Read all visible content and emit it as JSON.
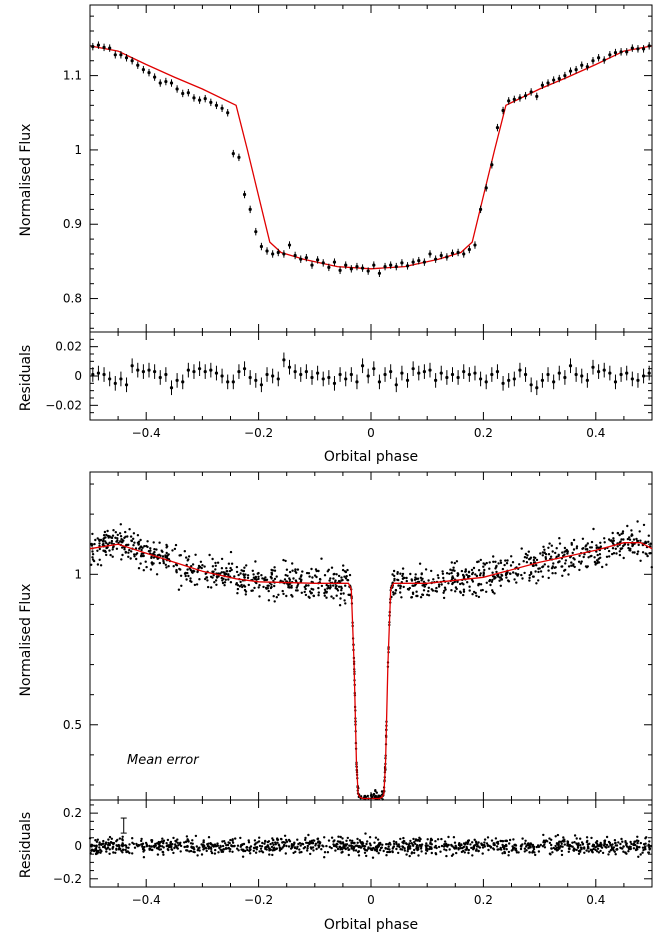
{
  "chart_data": [
    {
      "type": "scatter",
      "title": "",
      "xlabel": "Orbital phase",
      "ylabel": "Normalised Flux",
      "xlim": [
        -0.5,
        0.5
      ],
      "ylim": [
        0.755,
        1.195
      ],
      "xticks": [
        -0.4,
        -0.2,
        0,
        0.2,
        0.4
      ],
      "xtick_labels": [
        "−0.4",
        "−0.2",
        "0",
        "0.2",
        "0.4"
      ],
      "yticks": [
        0.8,
        0.9,
        1.0,
        1.1
      ],
      "ytick_labels": [
        "0.8",
        "0.9",
        "1",
        "1.1"
      ],
      "grid": false,
      "series": [
        {
          "kind": "data-with-errorbars",
          "x": [
            -0.495,
            -0.485,
            -0.475,
            -0.465,
            -0.455,
            -0.445,
            -0.435,
            -0.425,
            -0.415,
            -0.405,
            -0.395,
            -0.385,
            -0.375,
            -0.365,
            -0.355,
            -0.345,
            -0.335,
            -0.325,
            -0.315,
            -0.305,
            -0.295,
            -0.285,
            -0.275,
            -0.265,
            -0.255,
            -0.245,
            -0.235,
            -0.225,
            -0.215,
            -0.205,
            -0.195,
            -0.185,
            -0.175,
            -0.165,
            -0.155,
            -0.145,
            -0.135,
            -0.125,
            -0.115,
            -0.105,
            -0.095,
            -0.085,
            -0.075,
            -0.065,
            -0.055,
            -0.045,
            -0.035,
            -0.025,
            -0.015,
            -0.005,
            0.005,
            0.015,
            0.025,
            0.035,
            0.045,
            0.055,
            0.065,
            0.075,
            0.085,
            0.095,
            0.105,
            0.115,
            0.125,
            0.135,
            0.145,
            0.155,
            0.165,
            0.175,
            0.185,
            0.195,
            0.205,
            0.215,
            0.225,
            0.235,
            0.245,
            0.255,
            0.265,
            0.275,
            0.285,
            0.295,
            0.305,
            0.315,
            0.325,
            0.335,
            0.345,
            0.355,
            0.365,
            0.375,
            0.385,
            0.395,
            0.405,
            0.415,
            0.425,
            0.435,
            0.445,
            0.455,
            0.465,
            0.475,
            0.485,
            0.495
          ],
          "y": [
            1.139,
            1.141,
            1.138,
            1.137,
            1.128,
            1.128,
            1.124,
            1.12,
            1.114,
            1.108,
            1.104,
            1.098,
            1.09,
            1.092,
            1.09,
            1.082,
            1.076,
            1.077,
            1.07,
            1.067,
            1.069,
            1.064,
            1.06,
            1.056,
            1.05,
            0.995,
            0.99,
            0.94,
            0.92,
            0.89,
            0.87,
            0.864,
            0.86,
            0.862,
            0.86,
            0.872,
            0.858,
            0.853,
            0.855,
            0.845,
            0.852,
            0.848,
            0.842,
            0.849,
            0.838,
            0.845,
            0.84,
            0.843,
            0.841,
            0.837,
            0.845,
            0.834,
            0.843,
            0.845,
            0.843,
            0.848,
            0.844,
            0.849,
            0.851,
            0.849,
            0.86,
            0.853,
            0.858,
            0.856,
            0.861,
            0.862,
            0.86,
            0.866,
            0.872,
            0.92,
            0.949,
            0.98,
            1.03,
            1.053,
            1.066,
            1.068,
            1.07,
            1.073,
            1.078,
            1.072,
            1.087,
            1.09,
            1.094,
            1.096,
            1.1,
            1.106,
            1.108,
            1.114,
            1.112,
            1.12,
            1.124,
            1.121,
            1.128,
            1.131,
            1.132,
            1.132,
            1.137,
            1.136,
            1.136,
            1.14
          ],
          "yerr": 0.005
        },
        {
          "kind": "model",
          "x": [
            -0.5,
            -0.45,
            -0.4,
            -0.35,
            -0.3,
            -0.24,
            -0.22,
            -0.18,
            -0.16,
            -0.12,
            -0.06,
            0.0,
            0.06,
            0.12,
            0.16,
            0.18,
            0.22,
            0.24,
            0.3,
            0.35,
            0.4,
            0.45,
            0.5
          ],
          "y": [
            1.14,
            1.133,
            1.115,
            1.098,
            1.082,
            1.06,
            1.0,
            0.876,
            0.862,
            0.853,
            0.843,
            0.84,
            0.843,
            0.853,
            0.862,
            0.876,
            1.0,
            1.06,
            1.082,
            1.098,
            1.115,
            1.133,
            1.14
          ]
        }
      ]
    },
    {
      "type": "scatter",
      "title": "",
      "xlabel": "",
      "ylabel": "Residuals",
      "xlim": [
        -0.5,
        0.5
      ],
      "ylim": [
        -0.03,
        0.03
      ],
      "yticks": [
        -0.02,
        0,
        0.02
      ],
      "ytick_labels": [
        "−0.02",
        "0",
        "0.02"
      ],
      "yerr": 0.005,
      "series": [
        {
          "kind": "residuals-with-errorbars",
          "x": [
            -0.495,
            -0.485,
            -0.475,
            -0.465,
            -0.455,
            -0.445,
            -0.435,
            -0.425,
            -0.415,
            -0.405,
            -0.395,
            -0.385,
            -0.375,
            -0.365,
            -0.355,
            -0.345,
            -0.335,
            -0.325,
            -0.315,
            -0.305,
            -0.295,
            -0.285,
            -0.275,
            -0.265,
            -0.255,
            -0.245,
            -0.235,
            -0.225,
            -0.215,
            -0.205,
            -0.195,
            -0.185,
            -0.175,
            -0.165,
            -0.155,
            -0.145,
            -0.135,
            -0.125,
            -0.115,
            -0.105,
            -0.095,
            -0.085,
            -0.075,
            -0.065,
            -0.055,
            -0.045,
            -0.035,
            -0.025,
            -0.015,
            -0.005,
            0.005,
            0.015,
            0.025,
            0.035,
            0.045,
            0.055,
            0.065,
            0.075,
            0.085,
            0.095,
            0.105,
            0.115,
            0.125,
            0.135,
            0.145,
            0.155,
            0.165,
            0.175,
            0.185,
            0.195,
            0.205,
            0.215,
            0.225,
            0.235,
            0.245,
            0.255,
            0.265,
            0.275,
            0.285,
            0.295,
            0.305,
            0.315,
            0.325,
            0.335,
            0.345,
            0.355,
            0.365,
            0.375,
            0.385,
            0.395,
            0.405,
            0.415,
            0.425,
            0.435,
            0.445,
            0.455,
            0.465,
            0.475,
            0.485,
            0.495
          ],
          "y": [
            0.001,
            0.002,
            0.001,
            -0.002,
            -0.005,
            -0.002,
            -0.006,
            0.007,
            0.004,
            0.003,
            0.004,
            0.003,
            -0.001,
            0.001,
            -0.008,
            -0.003,
            -0.004,
            0.004,
            0.003,
            0.005,
            0.003,
            0.004,
            0.002,
            0.0,
            -0.004,
            -0.004,
            0.003,
            0.005,
            -0.001,
            -0.003,
            -0.006,
            0.001,
            0.0,
            -0.002,
            0.011,
            0.006,
            0.003,
            0.001,
            0.003,
            -0.001,
            0.002,
            -0.002,
            -0.001,
            -0.005,
            0.001,
            -0.002,
            0.001,
            -0.004,
            0.007,
            0.0,
            0.005,
            -0.004,
            0.001,
            0.003,
            -0.006,
            0.002,
            -0.003,
            0.005,
            0.002,
            0.003,
            0.004,
            -0.003,
            0.002,
            -0.001,
            0.001,
            -0.001,
            0.003,
            0.001,
            0.002,
            -0.002,
            -0.004,
            0.001,
            0.003,
            -0.005,
            -0.003,
            -0.002,
            0.004,
            0.001,
            -0.006,
            -0.008,
            -0.003,
            0.001,
            -0.004,
            0.002,
            -0.001,
            0.007,
            0.001,
            0.0,
            -0.003,
            0.006,
            0.003,
            0.004,
            0.002,
            -0.004,
            0.001,
            0.002,
            -0.002,
            -0.003,
            0.0,
            0.002
          ]
        }
      ]
    },
    {
      "type": "scatter",
      "title": "",
      "xlabel": "Orbital phase",
      "ylabel": "Normalised Flux",
      "xlim": [
        -0.5,
        0.5
      ],
      "ylim": [
        0.25,
        1.34
      ],
      "xticks": [
        -0.4,
        -0.2,
        0,
        0.2,
        0.4
      ],
      "xtick_labels": [
        "−0.4",
        "−0.2",
        "0",
        "0.2",
        "0.4"
      ],
      "yticks": [
        0.5,
        1.0
      ],
      "ytick_labels": [
        "0.5",
        "1"
      ],
      "grid": false,
      "annotation": {
        "text": "Mean error",
        "x": -0.44,
        "y": 0.165,
        "err_half": 0.025
      },
      "series": [
        {
          "kind": "dense-scatter",
          "n_points": 1200,
          "description_generated_by_script": true
        },
        {
          "kind": "model",
          "x": [
            -0.5,
            -0.45,
            -0.4,
            -0.35,
            -0.3,
            -0.24,
            -0.2,
            -0.1,
            -0.04,
            -0.035,
            -0.03,
            -0.026,
            -0.023,
            -0.02,
            -0.015,
            0.0,
            0.015,
            0.02,
            0.023,
            0.026,
            0.03,
            0.035,
            0.04,
            0.1,
            0.2,
            0.24,
            0.3,
            0.35,
            0.4,
            0.45,
            0.48,
            0.5
          ],
          "y": [
            1.085,
            1.1,
            1.07,
            1.04,
            1.01,
            0.985,
            0.975,
            0.97,
            0.97,
            0.95,
            0.7,
            0.38,
            0.27,
            0.26,
            0.255,
            0.255,
            0.255,
            0.26,
            0.27,
            0.38,
            0.7,
            0.95,
            0.97,
            0.97,
            0.99,
            1.01,
            1.04,
            1.06,
            1.08,
            1.105,
            1.105,
            1.085
          ]
        }
      ]
    },
    {
      "type": "scatter",
      "title": "",
      "xlabel": "",
      "ylabel": "Residuals",
      "xlim": [
        -0.5,
        0.5
      ],
      "ylim": [
        -0.25,
        0.28
      ],
      "yticks": [
        -0.2,
        0,
        0.2
      ],
      "ytick_labels": [
        "−0.2",
        "0",
        "0.2"
      ],
      "series": [
        {
          "kind": "dense-residuals",
          "n_points": 1200
        }
      ]
    }
  ],
  "colors": {
    "model": "#e00000",
    "data": "#000000"
  }
}
